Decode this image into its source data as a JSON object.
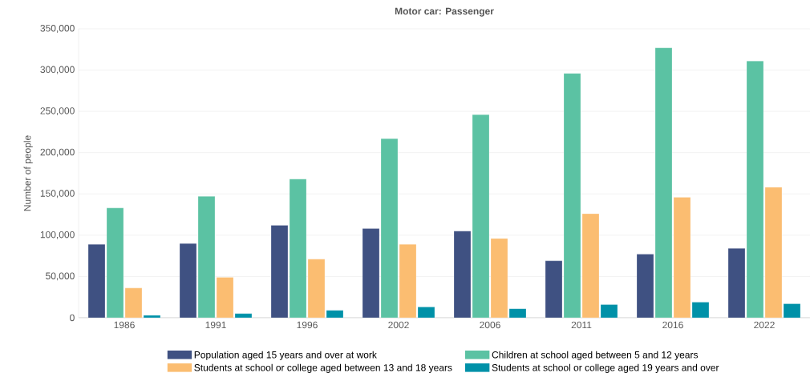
{
  "chart_data": {
    "type": "bar",
    "title": "Motor car: Passenger",
    "ylabel": "Number of people",
    "categories": [
      "1986",
      "1991",
      "1996",
      "2002",
      "2006",
      "2011",
      "2016",
      "2022"
    ],
    "series": [
      {
        "name": "Population aged 15 years and over at work",
        "color": "#3f5182",
        "values": [
          89000,
          90000,
          112000,
          108000,
          105000,
          69000,
          77000,
          84000
        ]
      },
      {
        "name": "Children at school aged between 5 and 12 years",
        "color": "#5bc2a3",
        "values": [
          133000,
          147000,
          168000,
          217000,
          246000,
          296000,
          327000,
          311000
        ]
      },
      {
        "name": "Students at school or college aged between 13 and 18 years",
        "color": "#fbbd71",
        "values": [
          36000,
          49000,
          71000,
          89000,
          96000,
          126000,
          146000,
          158000
        ]
      },
      {
        "name": "Students at school or college aged 19 years and over",
        "color": "#0091a8",
        "values": [
          3000,
          5000,
          9000,
          13000,
          11000,
          16000,
          19000,
          17000
        ]
      }
    ],
    "ylim": [
      0,
      350000
    ],
    "yticks": [
      {
        "value": 0,
        "label": "0"
      },
      {
        "value": 50000,
        "label": "50,000"
      },
      {
        "value": 100000,
        "label": "100,000"
      },
      {
        "value": 150000,
        "label": "150,000"
      },
      {
        "value": 200000,
        "label": "200,000"
      },
      {
        "value": 250000,
        "label": "250,000"
      },
      {
        "value": 300000,
        "label": "300,000"
      },
      {
        "value": 350000,
        "label": "350,000"
      }
    ],
    "grid": "y",
    "legend": "bottom"
  }
}
